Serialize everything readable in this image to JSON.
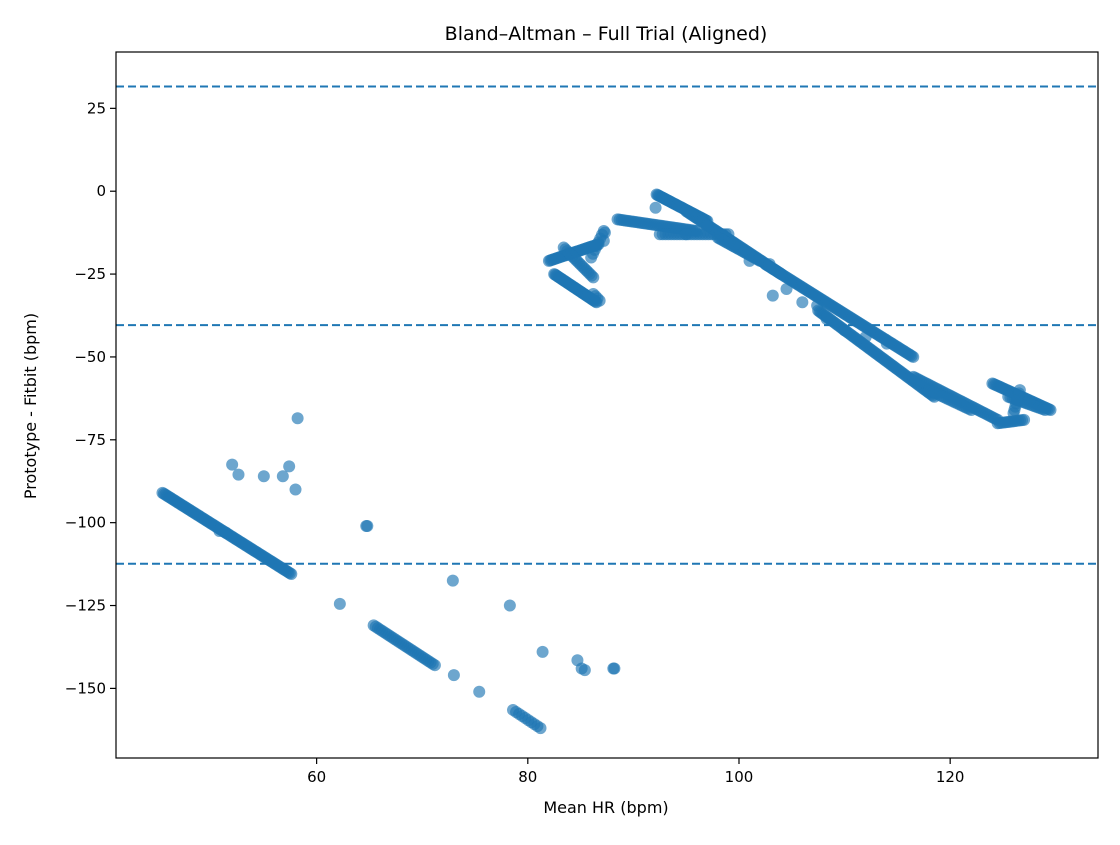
{
  "chart_data": {
    "type": "scatter",
    "title": "Bland–Altman – Full Trial (Aligned)",
    "xlabel": "Mean HR (bpm)",
    "ylabel": "Prototype - Fitbit (bpm)",
    "xlim": [
      41.0,
      134.0
    ],
    "ylim": [
      -171.0,
      42.0
    ],
    "x_ticks": [
      60,
      80,
      100,
      120
    ],
    "y_ticks": [
      25,
      0,
      -25,
      -50,
      -75,
      -100,
      -125,
      -150
    ],
    "x_tick_labels": [
      "60",
      "80",
      "100",
      "120"
    ],
    "y_tick_labels": [
      "25",
      "0",
      "−25",
      "−50",
      "−75",
      "−100",
      "−125",
      "−150"
    ],
    "grid": false,
    "legend": "none",
    "colors": {
      "points": "#1f77b4",
      "lines": "#1f77b4",
      "axes": "#000000"
    },
    "reference_lines": [
      {
        "role": "upper-loa",
        "y": 31.6
      },
      {
        "role": "mean-bias",
        "y": -40.4
      },
      {
        "role": "lower-loa",
        "y": -112.4
      }
    ],
    "series": [
      {
        "segments": [
          {
            "x0": 45.4,
            "y0": -91,
            "x1": 57.6,
            "y1": -115.5,
            "n": 90
          },
          {
            "x0": 65.4,
            "y0": -131,
            "x1": 71.2,
            "y1": -143,
            "n": 30
          },
          {
            "x0": 78.6,
            "y0": -156.5,
            "x1": 81.2,
            "y1": -162,
            "n": 10
          },
          {
            "x0": 82.5,
            "y0": -25,
            "x1": 86.5,
            "y1": -33.5,
            "n": 40
          },
          {
            "x0": 82.0,
            "y0": -21,
            "x1": 86.7,
            "y1": -16,
            "n": 35
          },
          {
            "x0": 83.4,
            "y0": -17,
            "x1": 86.2,
            "y1": -26,
            "n": 18
          },
          {
            "x0": 86.0,
            "y0": -20,
            "x1": 87.2,
            "y1": -12,
            "n": 8
          },
          {
            "x0": 86.2,
            "y0": -31,
            "x1": 86.8,
            "y1": -33,
            "n": 4
          },
          {
            "x0": 87.2,
            "y0": -15,
            "x1": 87.3,
            "y1": -12.5,
            "n": 2
          },
          {
            "x0": 88.5,
            "y0": -8.5,
            "x1": 96.0,
            "y1": -12,
            "n": 40
          },
          {
            "x0": 92.2,
            "y0": -1,
            "x1": 97.0,
            "y1": -9,
            "n": 45
          },
          {
            "x0": 92.5,
            "y0": -13,
            "x1": 99.0,
            "y1": -13,
            "n": 25
          },
          {
            "x0": 95.0,
            "y0": -6,
            "x1": 104.0,
            "y1": -25,
            "n": 70
          },
          {
            "x0": 98.0,
            "y0": -14,
            "x1": 102.0,
            "y1": -21,
            "n": 25
          },
          {
            "x0": 102.5,
            "y0": -22,
            "x1": 116.5,
            "y1": -50,
            "n": 100
          },
          {
            "x0": 107.5,
            "y0": -36,
            "x1": 118.5,
            "y1": -62,
            "n": 80
          },
          {
            "x0": 116.5,
            "y0": -56,
            "x1": 124.5,
            "y1": -69,
            "n": 45
          },
          {
            "x0": 118.0,
            "y0": -60,
            "x1": 122.0,
            "y1": -66,
            "n": 20
          },
          {
            "x0": 124.0,
            "y0": -58,
            "x1": 129.5,
            "y1": -66,
            "n": 40
          },
          {
            "x0": 125.5,
            "y0": -62,
            "x1": 129.0,
            "y1": -66,
            "n": 18
          },
          {
            "x0": 124.5,
            "y0": -70,
            "x1": 127.0,
            "y1": -69,
            "n": 14
          },
          {
            "x0": 126.0,
            "y0": -67,
            "x1": 126.6,
            "y1": -60,
            "n": 8
          }
        ],
        "points": [
          [
            52.0,
            -82.5
          ],
          [
            52.6,
            -85.5
          ],
          [
            55.0,
            -86
          ],
          [
            56.8,
            -86
          ],
          [
            57.4,
            -83
          ],
          [
            58.0,
            -90
          ],
          [
            58.2,
            -68.5
          ],
          [
            50.8,
            -102.5
          ],
          [
            51.4,
            -103
          ],
          [
            62.2,
            -124.5
          ],
          [
            64.8,
            -101
          ],
          [
            64.7,
            -101
          ],
          [
            72.9,
            -117.5
          ],
          [
            73.0,
            -146
          ],
          [
            75.4,
            -151
          ],
          [
            78.3,
            -125
          ],
          [
            81.4,
            -139
          ],
          [
            84.7,
            -141.5
          ],
          [
            85.1,
            -144
          ],
          [
            85.4,
            -144.5
          ],
          [
            88.2,
            -144
          ],
          [
            88.1,
            -144
          ],
          [
            97.0,
            -10.5
          ],
          [
            99.6,
            -16
          ],
          [
            101.0,
            -21
          ],
          [
            102.9,
            -22
          ],
          [
            103.2,
            -31.5
          ],
          [
            104.5,
            -29.5
          ],
          [
            106.0,
            -33.5
          ],
          [
            107.4,
            -34.5
          ],
          [
            108.3,
            -38.5
          ],
          [
            110.0,
            -42
          ],
          [
            112.0,
            -44
          ],
          [
            114.0,
            -46
          ],
          [
            95.0,
            -13
          ],
          [
            92.1,
            -5
          ]
        ]
      }
    ]
  }
}
